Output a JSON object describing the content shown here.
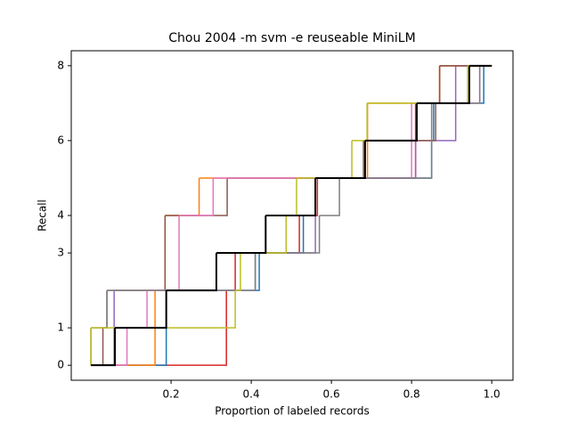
{
  "chart_data": {
    "type": "step",
    "title": "Chou 2004 -m svm -e reuseable MiniLM",
    "x_label": "Proportion of labeled records",
    "y_label": "Recall",
    "xlim": [
      -0.049,
      1.053
    ],
    "ylim": [
      -0.4,
      8.4
    ],
    "xticks": [
      0.2,
      0.4,
      0.6,
      0.8,
      {
        "value": 1,
        "label": "1.0"
      }
    ],
    "yticks": [
      0,
      1,
      3,
      4,
      6,
      8
    ],
    "series": [
      {
        "color": "#d62728",
        "x": [
          0,
          0.338,
          0.338,
          0.36,
          0.52,
          0.565,
          0.81,
          0.81,
          0.87,
          1
        ],
        "values": [
          0,
          1,
          2,
          3,
          4,
          5,
          6,
          7,
          8,
          8
        ]
      },
      {
        "color": "#1f77b4",
        "x": [
          0,
          0.188,
          0.188,
          0.42,
          0.53,
          0.56,
          0.85,
          0.855,
          0.98,
          1
        ],
        "values": [
          0,
          1,
          2,
          3,
          4,
          5,
          6,
          7,
          8,
          8
        ]
      },
      {
        "color": "#ff7f0e",
        "x": [
          0,
          0.16,
          0.16,
          0.185,
          0.185,
          0.27,
          0.69,
          0.69,
          0.87,
          1
        ],
        "values": [
          0,
          1,
          2,
          3,
          4,
          5,
          6,
          7,
          8,
          8
        ]
      },
      {
        "color": "#9467bd",
        "x": [
          0,
          0.058,
          0.058,
          0.41,
          0.56,
          0.56,
          0.81,
          0.91,
          0.91,
          1
        ],
        "values": [
          0,
          1,
          2,
          3,
          4,
          5,
          6,
          7,
          8,
          8
        ]
      },
      {
        "color": "#8c564b",
        "x": [
          0,
          0.03,
          0.04,
          0.185,
          0.185,
          0.34,
          0.68,
          0.86,
          0.87,
          1
        ],
        "values": [
          0,
          1,
          2,
          3,
          4,
          5,
          6,
          7,
          8,
          8
        ]
      },
      {
        "color": "#e377c2",
        "x": [
          0,
          0.09,
          0.14,
          0.22,
          0.22,
          0.305,
          0.8,
          0.8,
          0.97,
          1
        ],
        "values": [
          0,
          1,
          2,
          3,
          4,
          5,
          6,
          7,
          8,
          8
        ]
      },
      {
        "color": "#7f7f7f",
        "x": [
          0,
          0.0,
          0.04,
          0.41,
          0.57,
          0.62,
          0.85,
          0.85,
          0.97,
          1
        ],
        "values": [
          0,
          1,
          2,
          3,
          4,
          5,
          6,
          7,
          8,
          8
        ]
      },
      {
        "color": "#bcbd22",
        "x": [
          0,
          0.0,
          0.36,
          0.373,
          0.487,
          0.513,
          0.651,
          0.689,
          0.94,
          1
        ],
        "values": [
          0,
          1,
          2,
          3,
          4,
          5,
          6,
          7,
          8,
          8
        ]
      },
      {
        "color": "#000000",
        "x": [
          0,
          0.06,
          0.188,
          0.313,
          0.436,
          0.56,
          0.684,
          0.813,
          0.944,
          1
        ],
        "values": [
          0,
          1,
          2,
          3,
          4,
          5,
          6,
          7,
          8,
          8
        ]
      }
    ]
  }
}
